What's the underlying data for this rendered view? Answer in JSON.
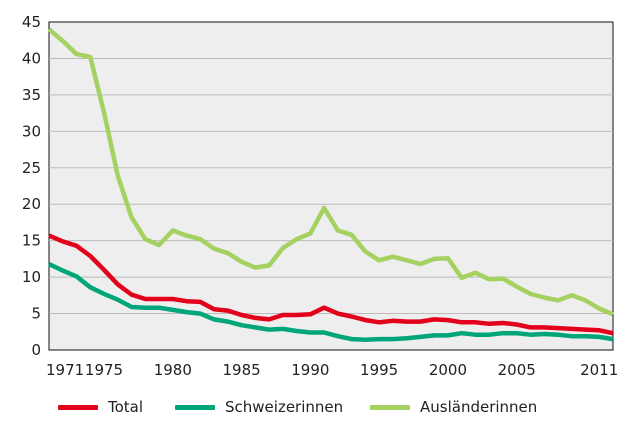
{
  "chart_data": {
    "type": "line",
    "title": "",
    "xlabel": "",
    "ylabel": "",
    "xlim": [
      1971,
      2012
    ],
    "ylim": [
      0,
      45
    ],
    "yticks": [
      0,
      5,
      10,
      15,
      20,
      25,
      30,
      35,
      40,
      45
    ],
    "xticks": [
      1971,
      1975,
      1980,
      1985,
      1990,
      1995,
      2000,
      2005,
      2011
    ],
    "grid": true,
    "legend": "bottom",
    "x": [
      1971,
      1972,
      1973,
      1974,
      1975,
      1976,
      1977,
      1978,
      1979,
      1980,
      1981,
      1982,
      1983,
      1984,
      1985,
      1986,
      1987,
      1988,
      1989,
      1990,
      1991,
      1992,
      1993,
      1994,
      1995,
      1996,
      1997,
      1998,
      1999,
      2000,
      2001,
      2002,
      2003,
      2004,
      2005,
      2006,
      2007,
      2008,
      2009,
      2010,
      2011,
      2012
    ],
    "series": [
      {
        "name": "Total",
        "color": "#e2001a",
        "values": [
          15.7,
          14.9,
          14.3,
          12.9,
          11.0,
          9.0,
          7.6,
          7.0,
          7.0,
          7.0,
          6.7,
          6.6,
          5.6,
          5.4,
          4.8,
          4.4,
          4.2,
          4.8,
          4.8,
          4.9,
          5.8,
          5.0,
          4.6,
          4.1,
          3.8,
          4.0,
          3.9,
          3.9,
          4.2,
          4.1,
          3.8,
          3.8,
          3.6,
          3.7,
          3.5,
          3.1,
          3.1,
          3.0,
          2.9,
          2.8,
          2.7,
          2.3
        ]
      },
      {
        "name": "Schweizerinnen",
        "color": "#00a57a",
        "values": [
          11.8,
          10.9,
          10.1,
          8.6,
          7.7,
          6.9,
          5.9,
          5.8,
          5.8,
          5.5,
          5.2,
          5.0,
          4.2,
          3.9,
          3.4,
          3.1,
          2.8,
          2.9,
          2.6,
          2.4,
          2.4,
          1.9,
          1.5,
          1.4,
          1.5,
          1.5,
          1.6,
          1.8,
          2.0,
          2.0,
          2.3,
          2.1,
          2.1,
          2.3,
          2.3,
          2.1,
          2.2,
          2.1,
          1.9,
          1.9,
          1.8,
          1.5
        ]
      },
      {
        "name": "Ausländerinnen",
        "color": "#a4d160",
        "values": [
          44.0,
          42.4,
          40.6,
          40.2,
          32.6,
          23.9,
          18.2,
          15.2,
          14.4,
          16.4,
          15.7,
          15.2,
          13.9,
          13.3,
          12.1,
          11.3,
          11.6,
          14.0,
          15.2,
          16.0,
          19.5,
          16.4,
          15.8,
          13.5,
          12.3,
          12.8,
          12.3,
          11.8,
          12.5,
          12.6,
          9.9,
          10.6,
          9.7,
          9.8,
          8.7,
          7.7,
          7.2,
          6.8,
          7.5,
          6.8,
          5.7,
          4.9
        ]
      }
    ]
  }
}
